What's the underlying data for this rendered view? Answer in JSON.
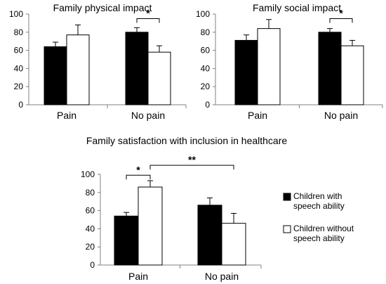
{
  "chart_data": [
    {
      "id": "physical",
      "type": "bar",
      "title": "Family physical impact",
      "categories": [
        "Pain",
        "No pain"
      ],
      "ylim": [
        0,
        100
      ],
      "yticks": [
        0,
        20,
        40,
        60,
        80,
        100
      ],
      "series": [
        {
          "values": [
            64,
            80
          ],
          "errors": [
            5,
            5
          ]
        },
        {
          "values": [
            77,
            58
          ],
          "errors": [
            11,
            7
          ]
        }
      ],
      "annotations": [
        {
          "label": "*",
          "from": {
            "category": 1,
            "series": 0
          },
          "to": {
            "category": 1,
            "series": 1
          },
          "y": 95
        }
      ]
    },
    {
      "id": "social",
      "type": "bar",
      "title": "Family social impact",
      "categories": [
        "Pain",
        "No pain"
      ],
      "ylim": [
        0,
        100
      ],
      "yticks": [
        0,
        20,
        40,
        60,
        80,
        100
      ],
      "series": [
        {
          "values": [
            71,
            80
          ],
          "errors": [
            6,
            4
          ]
        },
        {
          "values": [
            84,
            65
          ],
          "errors": [
            10,
            6
          ]
        }
      ],
      "annotations": [
        {
          "label": "*",
          "from": {
            "category": 1,
            "series": 0
          },
          "to": {
            "category": 1,
            "series": 1
          },
          "y": 95
        }
      ]
    },
    {
      "id": "satisfaction",
      "type": "bar",
      "title": "Family satisfaction with inclusion in healthcare",
      "categories": [
        "Pain",
        "No pain"
      ],
      "ylim": [
        0,
        100
      ],
      "yticks": [
        0,
        20,
        40,
        60,
        80,
        100
      ],
      "series": [
        {
          "name": "Children with speech ability",
          "values": [
            54,
            66
          ],
          "errors": [
            4,
            8
          ]
        },
        {
          "name": "Children without speech ability",
          "values": [
            86,
            46
          ],
          "errors": [
            7,
            11
          ]
        }
      ],
      "annotations": [
        {
          "label": "*",
          "from": {
            "category": 0,
            "series": 0
          },
          "to": {
            "category": 0,
            "series": 1
          },
          "y": 99
        },
        {
          "label": "**",
          "from": {
            "category": 0,
            "series": 1
          },
          "to": {
            "category": 1,
            "series": 1
          },
          "y": 110
        }
      ]
    }
  ],
  "legend": {
    "items": [
      {
        "lines": [
          "Children with",
          "speech ability"
        ],
        "fill": "#000000"
      },
      {
        "lines": [
          "Children without",
          "speech ability"
        ],
        "fill": "#ffffff"
      }
    ]
  },
  "colors": {
    "series_fills": [
      "#000000",
      "#ffffff"
    ],
    "stroke": "#000000",
    "axis": "#808080"
  }
}
